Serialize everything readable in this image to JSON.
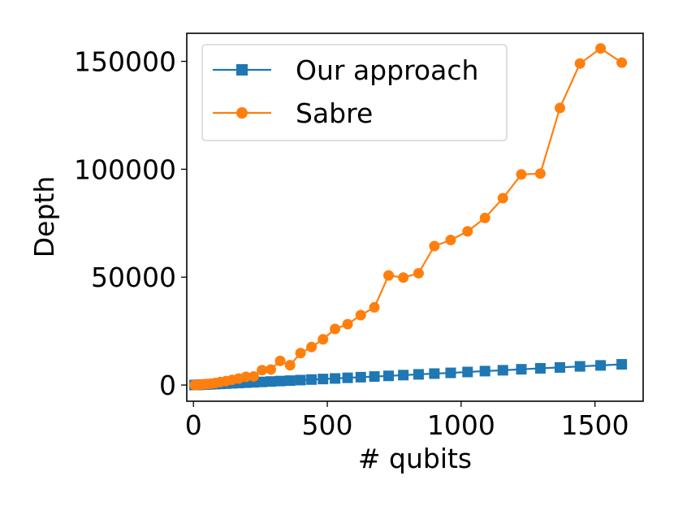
{
  "chart_data": {
    "type": "line",
    "xlabel": "# qubits",
    "ylabel": "Depth",
    "xlim": [
      -25,
      1680
    ],
    "ylim": [
      -7500,
      163000
    ],
    "x_ticks": [
      0,
      500,
      1000,
      1500
    ],
    "y_ticks": [
      0,
      50000,
      100000,
      150000
    ],
    "x_tick_labels": [
      "0",
      "500",
      "1000",
      "1500"
    ],
    "y_tick_labels": [
      "0",
      "50000",
      "100000",
      "150000"
    ],
    "grid": false,
    "legend_position": "upper-left",
    "series": [
      {
        "name": "Our approach",
        "color": "#1f77b4",
        "marker": "square",
        "x": [
          4,
          9,
          16,
          25,
          36,
          49,
          64,
          81,
          100,
          121,
          144,
          169,
          196,
          225,
          256,
          289,
          324,
          361,
          400,
          441,
          484,
          529,
          576,
          625,
          676,
          729,
          784,
          841,
          900,
          961,
          1024,
          1089,
          1156,
          1225,
          1296,
          1369,
          1444,
          1521,
          1600
        ],
        "y": [
          10,
          40,
          80,
          140,
          200,
          270,
          350,
          440,
          550,
          670,
          800,
          940,
          1100,
          1260,
          1450,
          1640,
          1850,
          2050,
          2300,
          2550,
          2800,
          3050,
          3350,
          3650,
          3950,
          4250,
          4600,
          4950,
          5300,
          5650,
          6050,
          6450,
          6850,
          7300,
          7750,
          8150,
          8650,
          9100,
          9600
        ]
      },
      {
        "name": "Sabre",
        "color": "#ff7f0e",
        "marker": "circle",
        "x": [
          4,
          9,
          16,
          25,
          36,
          49,
          64,
          81,
          100,
          121,
          144,
          169,
          196,
          225,
          256,
          289,
          324,
          361,
          400,
          441,
          484,
          529,
          576,
          625,
          676,
          729,
          784,
          841,
          900,
          961,
          1024,
          1089,
          1156,
          1225,
          1296,
          1369,
          1444,
          1521,
          1600
        ],
        "y": [
          10,
          50,
          120,
          200,
          320,
          480,
          650,
          900,
          1400,
          1800,
          2400,
          3000,
          3800,
          4000,
          6900,
          7200,
          11200,
          9200,
          14800,
          17600,
          21200,
          26000,
          28200,
          32400,
          36000,
          50800,
          49800,
          51800,
          64400,
          67200,
          71200,
          77400,
          86600,
          97600,
          98000,
          128400,
          149000,
          156000,
          149400
        ]
      }
    ]
  }
}
